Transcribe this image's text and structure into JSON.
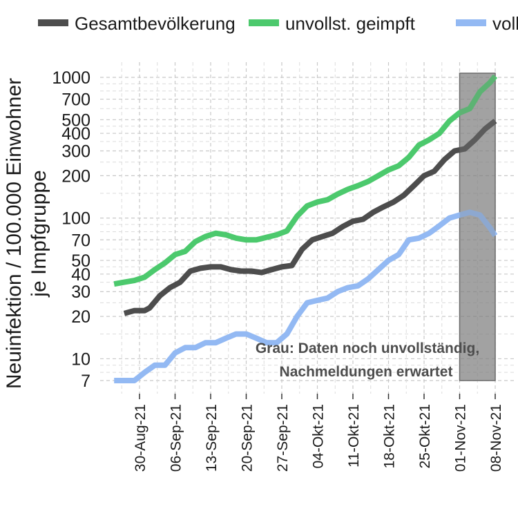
{
  "chart_data": {
    "type": "line",
    "y_scale": "log",
    "ylabel_line1": "Neuinfektion / 100.000 Einwohner",
    "ylabel_line2": "je  Impfgruppe",
    "xlabel": "",
    "ylim": [
      6,
      1100
    ],
    "xlim": [
      "2021-08-25",
      "2021-11-09"
    ],
    "y_ticks": [
      7,
      10,
      20,
      30,
      40,
      50,
      70,
      100,
      200,
      300,
      400,
      500,
      700,
      1000
    ],
    "x_ticks": [
      {
        "date": "2021-08-30",
        "label": "30-Aug-21"
      },
      {
        "date": "2021-09-06",
        "label": "06-Sep-21"
      },
      {
        "date": "2021-09-13",
        "label": "13-Sep-21"
      },
      {
        "date": "2021-09-20",
        "label": "20-Sep-21"
      },
      {
        "date": "2021-09-27",
        "label": "27-Sep-21"
      },
      {
        "date": "2021-10-04",
        "label": "04-Okt-21"
      },
      {
        "date": "2021-10-11",
        "label": "11-Okt-21"
      },
      {
        "date": "2021-10-18",
        "label": "18-Okt-21"
      },
      {
        "date": "2021-10-25",
        "label": "25-Okt-21"
      },
      {
        "date": "2021-11-01",
        "label": "01-Nov-21"
      },
      {
        "date": "2021-11-08",
        "label": "08-Nov-21"
      }
    ],
    "grid": true,
    "legend_position": "top",
    "shaded_region": {
      "from": "2021-11-01",
      "to": "2021-11-08",
      "ymin": 7,
      "ymax": 1000,
      "color": "#808080"
    },
    "annotation": {
      "line1": "Grau: Daten noch unvollständig,",
      "line2": "Nachmeldungen erwartet"
    },
    "series": [
      {
        "name": "Gesamtbevölkerung",
        "color": "#4d4d4d",
        "points": [
          [
            "2021-08-27",
            21
          ],
          [
            "2021-08-29",
            22
          ],
          [
            "2021-08-31",
            22
          ],
          [
            "2021-09-01",
            23
          ],
          [
            "2021-09-03",
            28
          ],
          [
            "2021-09-05",
            32
          ],
          [
            "2021-09-07",
            35
          ],
          [
            "2021-09-09",
            42
          ],
          [
            "2021-09-11",
            44
          ],
          [
            "2021-09-13",
            45
          ],
          [
            "2021-09-15",
            45
          ],
          [
            "2021-09-17",
            43
          ],
          [
            "2021-09-19",
            42
          ],
          [
            "2021-09-21",
            42
          ],
          [
            "2021-09-23",
            41
          ],
          [
            "2021-09-25",
            43
          ],
          [
            "2021-09-27",
            45
          ],
          [
            "2021-09-29",
            46
          ],
          [
            "2021-10-01",
            60
          ],
          [
            "2021-10-03",
            70
          ],
          [
            "2021-10-05",
            74
          ],
          [
            "2021-10-07",
            78
          ],
          [
            "2021-10-09",
            87
          ],
          [
            "2021-10-11",
            95
          ],
          [
            "2021-10-13",
            98
          ],
          [
            "2021-10-15",
            110
          ],
          [
            "2021-10-17",
            120
          ],
          [
            "2021-10-19",
            130
          ],
          [
            "2021-10-21",
            145
          ],
          [
            "2021-10-23",
            170
          ],
          [
            "2021-10-25",
            200
          ],
          [
            "2021-10-27",
            215
          ],
          [
            "2021-10-29",
            260
          ],
          [
            "2021-10-31",
            300
          ],
          [
            "2021-11-02",
            310
          ],
          [
            "2021-11-04",
            360
          ],
          [
            "2021-11-06",
            430
          ],
          [
            "2021-11-08",
            490
          ]
        ]
      },
      {
        "name": "unvollst. geimpft",
        "color": "#4cc96d",
        "points": [
          [
            "2021-08-25",
            34
          ],
          [
            "2021-08-27",
            35
          ],
          [
            "2021-08-29",
            36
          ],
          [
            "2021-08-31",
            38
          ],
          [
            "2021-09-02",
            43
          ],
          [
            "2021-09-04",
            48
          ],
          [
            "2021-09-06",
            55
          ],
          [
            "2021-09-08",
            58
          ],
          [
            "2021-09-10",
            68
          ],
          [
            "2021-09-12",
            74
          ],
          [
            "2021-09-14",
            78
          ],
          [
            "2021-09-16",
            76
          ],
          [
            "2021-09-18",
            72
          ],
          [
            "2021-09-20",
            70
          ],
          [
            "2021-09-22",
            70
          ],
          [
            "2021-09-24",
            73
          ],
          [
            "2021-09-26",
            76
          ],
          [
            "2021-09-28",
            81
          ],
          [
            "2021-09-30",
            103
          ],
          [
            "2021-10-02",
            122
          ],
          [
            "2021-10-04",
            130
          ],
          [
            "2021-10-06",
            135
          ],
          [
            "2021-10-08",
            148
          ],
          [
            "2021-10-10",
            160
          ],
          [
            "2021-10-12",
            170
          ],
          [
            "2021-10-14",
            182
          ],
          [
            "2021-10-16",
            200
          ],
          [
            "2021-10-18",
            220
          ],
          [
            "2021-10-20",
            235
          ],
          [
            "2021-10-22",
            270
          ],
          [
            "2021-10-24",
            330
          ],
          [
            "2021-10-26",
            360
          ],
          [
            "2021-10-28",
            400
          ],
          [
            "2021-10-30",
            490
          ],
          [
            "2021-11-01",
            560
          ],
          [
            "2021-11-03",
            600
          ],
          [
            "2021-11-05",
            790
          ],
          [
            "2021-11-07",
            920
          ],
          [
            "2021-11-08",
            1020
          ]
        ]
      },
      {
        "name": "vollst. geimpft",
        "color": "#93b9f3",
        "points": [
          [
            "2021-08-25",
            7
          ],
          [
            "2021-08-27",
            7
          ],
          [
            "2021-08-29",
            7
          ],
          [
            "2021-08-31",
            8
          ],
          [
            "2021-09-02",
            9
          ],
          [
            "2021-09-04",
            9
          ],
          [
            "2021-09-06",
            11
          ],
          [
            "2021-09-08",
            12
          ],
          [
            "2021-09-10",
            12
          ],
          [
            "2021-09-12",
            13
          ],
          [
            "2021-09-14",
            13
          ],
          [
            "2021-09-16",
            14
          ],
          [
            "2021-09-18",
            15
          ],
          [
            "2021-09-20",
            15
          ],
          [
            "2021-09-22",
            14
          ],
          [
            "2021-09-24",
            13
          ],
          [
            "2021-09-26",
            13
          ],
          [
            "2021-09-28",
            15
          ],
          [
            "2021-09-30",
            20
          ],
          [
            "2021-10-02",
            25
          ],
          [
            "2021-10-04",
            26
          ],
          [
            "2021-10-06",
            27
          ],
          [
            "2021-10-08",
            30
          ],
          [
            "2021-10-10",
            32
          ],
          [
            "2021-10-12",
            33
          ],
          [
            "2021-10-14",
            37
          ],
          [
            "2021-10-16",
            43
          ],
          [
            "2021-10-18",
            50
          ],
          [
            "2021-10-20",
            55
          ],
          [
            "2021-10-22",
            70
          ],
          [
            "2021-10-24",
            72
          ],
          [
            "2021-10-26",
            78
          ],
          [
            "2021-10-28",
            88
          ],
          [
            "2021-10-30",
            100
          ],
          [
            "2021-11-01",
            105
          ],
          [
            "2021-11-03",
            110
          ],
          [
            "2021-11-05",
            105
          ],
          [
            "2021-11-07",
            85
          ],
          [
            "2021-11-08",
            75
          ]
        ]
      }
    ]
  }
}
